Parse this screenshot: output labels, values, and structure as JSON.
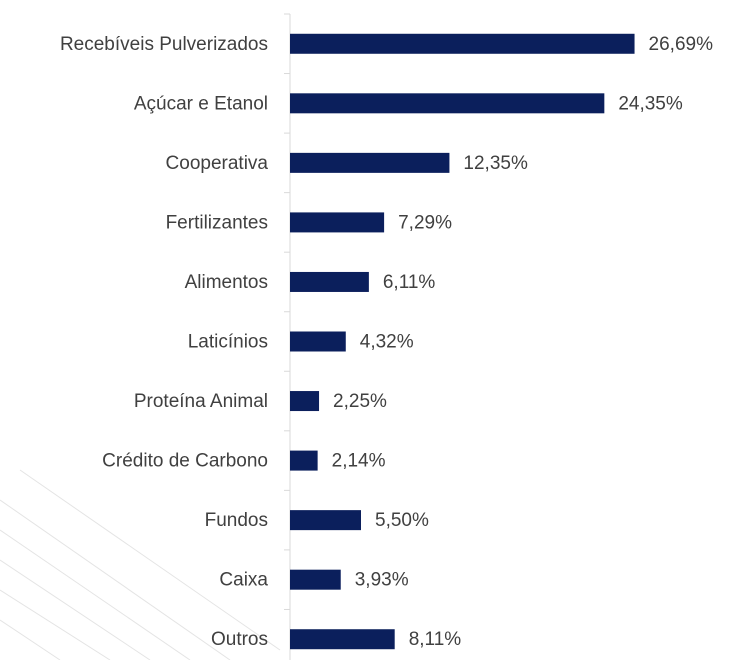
{
  "chart_data": {
    "type": "bar",
    "orientation": "horizontal",
    "categories": [
      "Recebíveis Pulverizados",
      "Açúcar e Etanol",
      "Cooperativa",
      "Fertilizantes",
      "Alimentos",
      "Laticínios",
      "Proteína Animal",
      "Crédito de Carbono",
      "Fundos",
      "Caixa",
      "Outros"
    ],
    "values": [
      26.69,
      24.35,
      12.35,
      7.29,
      6.11,
      4.32,
      2.25,
      2.14,
      5.5,
      3.93,
      8.11
    ],
    "value_labels": [
      "26,69%",
      "24,35%",
      "12,35%",
      "7,29%",
      "6,11%",
      "4,32%",
      "2,25%",
      "2,14%",
      "5,50%",
      "3,93%",
      "8,11%"
    ],
    "color": "#0b1f5c",
    "xlim": [
      0,
      33
    ]
  }
}
